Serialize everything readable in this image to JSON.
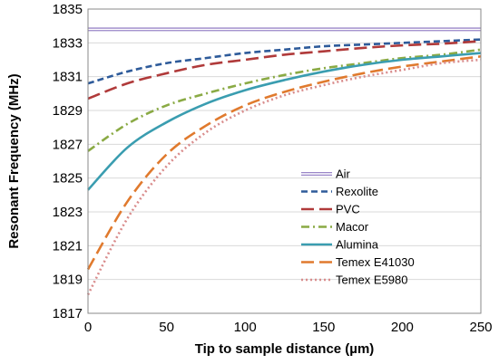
{
  "chart_data": {
    "type": "line",
    "title": "",
    "xlabel": "Tip to sample distance (µm)",
    "ylabel": "Resonant Frequency (MHz)",
    "xlim": [
      0,
      250
    ],
    "ylim": [
      1817,
      1835
    ],
    "xticks": [
      0,
      50,
      100,
      150,
      200,
      250
    ],
    "yticks": [
      1817,
      1819,
      1821,
      1823,
      1825,
      1827,
      1829,
      1831,
      1833,
      1835
    ],
    "grid": "horizontal",
    "legend_position": "center-right",
    "x": [
      0,
      25,
      50,
      75,
      100,
      125,
      150,
      175,
      200,
      225,
      250
    ],
    "series": [
      {
        "name": "Air",
        "color": "#9a86c8",
        "dash": "solid-double",
        "values": [
          1833.8,
          1833.8,
          1833.8,
          1833.8,
          1833.8,
          1833.8,
          1833.8,
          1833.8,
          1833.8,
          1833.8,
          1833.8
        ]
      },
      {
        "name": "Rexolite",
        "color": "#2e5b9a",
        "dash": "dashed",
        "values": [
          1830.6,
          1831.3,
          1831.8,
          1832.1,
          1832.4,
          1832.6,
          1832.8,
          1832.9,
          1833.0,
          1833.1,
          1833.2
        ]
      },
      {
        "name": "PVC",
        "color": "#b03a3a",
        "dash": "long-dash",
        "values": [
          1829.7,
          1830.6,
          1831.2,
          1831.7,
          1832.0,
          1832.3,
          1832.5,
          1832.7,
          1832.85,
          1832.95,
          1833.1
        ]
      },
      {
        "name": "Macor",
        "color": "#8aaa44",
        "dash": "dash-dot",
        "values": [
          1826.6,
          1828.2,
          1829.3,
          1830.0,
          1830.6,
          1831.1,
          1831.5,
          1831.8,
          1832.1,
          1832.3,
          1832.6
        ]
      },
      {
        "name": "Alumina",
        "color": "#3a9db0",
        "dash": "solid",
        "values": [
          1824.3,
          1826.8,
          1828.3,
          1829.4,
          1830.2,
          1830.8,
          1831.3,
          1831.7,
          1832.0,
          1832.2,
          1832.4
        ]
      },
      {
        "name": "Temex E41030",
        "color": "#e07a2e",
        "dash": "long-dash",
        "values": [
          1819.6,
          1823.6,
          1826.4,
          1828.1,
          1829.3,
          1830.1,
          1830.7,
          1831.2,
          1831.6,
          1831.9,
          1832.2
        ]
      },
      {
        "name": "Temex E5980",
        "color": "#d98c8c",
        "dash": "dotted",
        "values": [
          1818.1,
          1822.6,
          1825.7,
          1827.7,
          1829.0,
          1829.9,
          1830.5,
          1831.0,
          1831.4,
          1831.8,
          1832.0
        ]
      }
    ]
  }
}
